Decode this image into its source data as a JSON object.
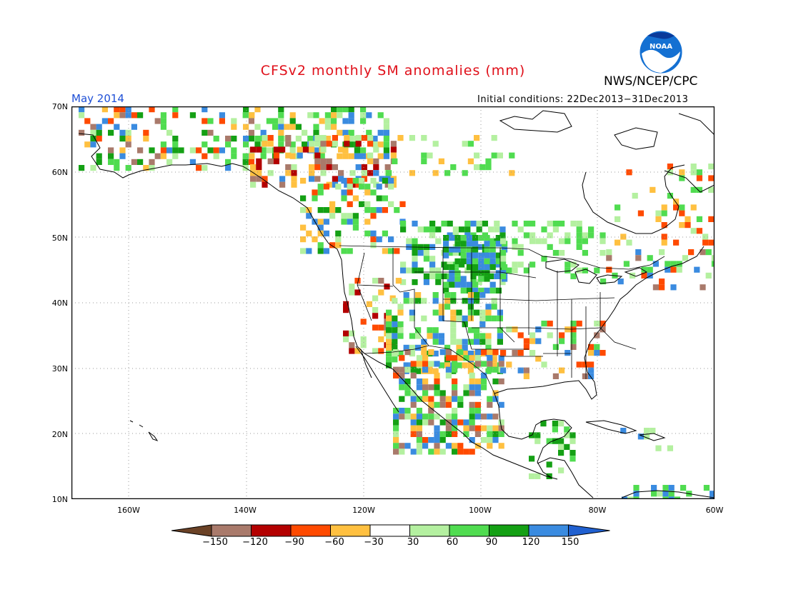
{
  "title": "CFSv2 monthly SM anomalies (mm)",
  "agency": "NWS/NCEP/CPC",
  "month_label": "May 2014",
  "initial_conditions": "Initial conditions: 22Dec2013−31Dec2013",
  "logo_text": "NOAA",
  "lat_labels": [
    "70N",
    "60N",
    "50N",
    "40N",
    "30N",
    "20N",
    "10N"
  ],
  "lon_labels": [
    "160W",
    "140W",
    "120W",
    "100W",
    "80W",
    "60W"
  ],
  "colorbar": {
    "labels": [
      "−150",
      "−120",
      "−90",
      "−60",
      "−30",
      "30",
      "60",
      "90",
      "120",
      "150"
    ],
    "colors": [
      "#6b4226",
      "#a97a6b",
      "#b30000",
      "#ff4a00",
      "#ffc040",
      "#ffffff",
      "#b4f0a0",
      "#50dc50",
      "#14a014",
      "#3a8be0",
      "#2060d0"
    ]
  },
  "map_extent": {
    "lon_min": -171,
    "lon_max": -60,
    "lat_min": 10,
    "lat_max": 70
  },
  "colors": {
    "title": "#e0101a",
    "month": "#1e4fd6",
    "coast": "#000000",
    "grid": "#9a9a9a"
  }
}
